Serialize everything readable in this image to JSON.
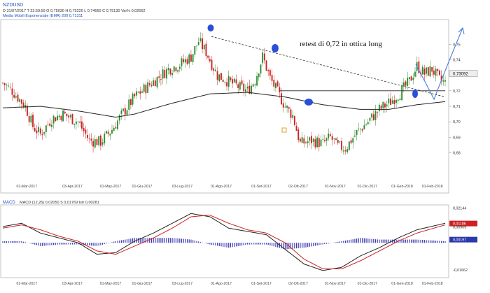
{
  "header": {
    "symbol": "NZDUSD",
    "ohlc_line": "D 31/07/2017 T 23:59:59 O 0,75030 H 0,75220 L 0,74660 C 0,75130 Var% 0,02662",
    "ema_line": "Media Mobili Esponenziale (EMA) 200 0,71311"
  },
  "annotation": {
    "text": "retest di 0,72 in ottica long"
  },
  "colors": {
    "bull": "#2e8b2e",
    "bear": "#cc2222",
    "ema": "#222222",
    "macd": "#222222",
    "signal": "#cc2222",
    "hist": "#3a3ab0",
    "marker": "#2a4fd8",
    "arrow": "#4a7fd8"
  },
  "chart_data": [
    {
      "type": "candlestick",
      "title": "NZDUSD",
      "ylim": [
        0.655,
        0.765
      ],
      "y_ticks": [
        "0,75",
        "0,74",
        "0,72",
        "0,71",
        "0,70",
        "0,69",
        "0,68"
      ],
      "y_tick_values": [
        0.75,
        0.74,
        0.72,
        0.71,
        0.7,
        0.69,
        0.68
      ],
      "x_tick_labels": [
        "01-Mar-2017",
        "03-Apr-2017",
        "01-May-2017",
        "01-Giu-2017",
        "03-Lug-2017",
        "01-Ago-2017",
        "01-Set-2017",
        "02-Ott-2017",
        "01-Nov-2017",
        "01-Dic-2017",
        "01-Gen-2018",
        "01-Feb-2018"
      ],
      "price_path": [
        [
          0,
          0.725
        ],
        [
          5,
          0.72
        ],
        [
          12,
          0.71
        ],
        [
          16,
          0.697
        ],
        [
          20,
          0.692
        ],
        [
          26,
          0.702
        ],
        [
          32,
          0.705
        ],
        [
          40,
          0.7
        ],
        [
          46,
          0.688
        ],
        [
          52,
          0.687
        ],
        [
          58,
          0.695
        ],
        [
          64,
          0.706
        ],
        [
          70,
          0.716
        ],
        [
          76,
          0.722
        ],
        [
          82,
          0.728
        ],
        [
          88,
          0.734
        ],
        [
          94,
          0.737
        ],
        [
          100,
          0.742
        ],
        [
          104,
          0.752
        ],
        [
          108,
          0.745
        ],
        [
          114,
          0.73
        ],
        [
          120,
          0.726
        ],
        [
          126,
          0.722
        ],
        [
          130,
          0.72
        ],
        [
          134,
          0.727
        ],
        [
          138,
          0.742
        ],
        [
          142,
          0.728
        ],
        [
          146,
          0.719
        ],
        [
          150,
          0.71
        ],
        [
          154,
          0.704
        ],
        [
          158,
          0.686
        ],
        [
          164,
          0.688
        ],
        [
          170,
          0.686
        ],
        [
          174,
          0.69
        ],
        [
          178,
          0.684
        ],
        [
          182,
          0.683
        ],
        [
          188,
          0.693
        ],
        [
          194,
          0.7
        ],
        [
          200,
          0.708
        ],
        [
          206,
          0.713
        ],
        [
          212,
          0.72
        ],
        [
          216,
          0.726
        ],
        [
          220,
          0.736
        ],
        [
          224,
          0.731
        ],
        [
          228,
          0.734
        ],
        [
          232,
          0.727
        ],
        [
          235,
          0.725
        ]
      ],
      "ema200_path": [
        [
          0,
          0.709
        ],
        [
          20,
          0.71
        ],
        [
          40,
          0.707
        ],
        [
          60,
          0.703
        ],
        [
          70,
          0.705
        ],
        [
          90,
          0.712
        ],
        [
          110,
          0.718
        ],
        [
          130,
          0.719
        ],
        [
          150,
          0.716
        ],
        [
          170,
          0.711
        ],
        [
          190,
          0.708
        ],
        [
          205,
          0.708
        ],
        [
          220,
          0.711
        ],
        [
          235,
          0.713
        ]
      ],
      "last_price_label": "0,73092",
      "last_price_value": 0.73092,
      "support_level": 0.72,
      "trendline": {
        "from": [
          0.755
        ],
        "to": [
          0.716
        ]
      }
    },
    {
      "type": "line",
      "title": "MACD",
      "legend": "MACD (12,26) 0,02050 S 0,01769 Istr 0,00281",
      "ylim": [
        -0.0205,
        0.022
      ],
      "y_ticks": [
        "0,02144",
        "0,01186",
        "0,00969",
        "0,00197",
        "-0,01662"
      ],
      "y_tick_values": [
        0.02144,
        0.01186,
        0.00969,
        0.00197,
        -0.01662
      ],
      "x_tick_labels": [
        "01-Mar-2017",
        "03-Apr-2017",
        "01-May-2017",
        "01-Giu-2017",
        "03-Lug-2017",
        "01-Ago-2017",
        "01-Set-2017",
        "02-Ott-2017",
        "01-Nov-2017",
        "01-Dic-2017",
        "01-Gen-2018",
        "01-Feb-2018"
      ],
      "macd_path": [
        [
          0,
          0.01
        ],
        [
          10,
          0.012
        ],
        [
          20,
          0.006
        ],
        [
          30,
          0.003
        ],
        [
          40,
          0.0
        ],
        [
          50,
          -0.007
        ],
        [
          60,
          -0.006
        ],
        [
          70,
          0.001
        ],
        [
          80,
          0.006
        ],
        [
          90,
          0.012
        ],
        [
          100,
          0.018
        ],
        [
          110,
          0.016
        ],
        [
          120,
          0.009
        ],
        [
          130,
          0.007
        ],
        [
          140,
          0.005
        ],
        [
          150,
          -0.004
        ],
        [
          160,
          -0.013
        ],
        [
          170,
          -0.017
        ],
        [
          180,
          -0.015
        ],
        [
          190,
          -0.008
        ],
        [
          200,
          -0.003
        ],
        [
          210,
          0.003
        ],
        [
          220,
          0.008
        ],
        [
          235,
          0.012
        ]
      ],
      "signal_path": [
        [
          0,
          0.009
        ],
        [
          10,
          0.011
        ],
        [
          20,
          0.008
        ],
        [
          30,
          0.004
        ],
        [
          40,
          0.001
        ],
        [
          50,
          -0.005
        ],
        [
          60,
          -0.007
        ],
        [
          70,
          -0.002
        ],
        [
          80,
          0.003
        ],
        [
          90,
          0.009
        ],
        [
          100,
          0.016
        ],
        [
          110,
          0.017
        ],
        [
          120,
          0.012
        ],
        [
          130,
          0.008
        ],
        [
          140,
          0.006
        ],
        [
          150,
          0.0
        ],
        [
          160,
          -0.01
        ],
        [
          170,
          -0.016
        ],
        [
          180,
          -0.016
        ],
        [
          190,
          -0.011
        ],
        [
          200,
          -0.005
        ],
        [
          210,
          0.001
        ],
        [
          220,
          0.006
        ],
        [
          235,
          0.011
        ]
      ]
    }
  ]
}
